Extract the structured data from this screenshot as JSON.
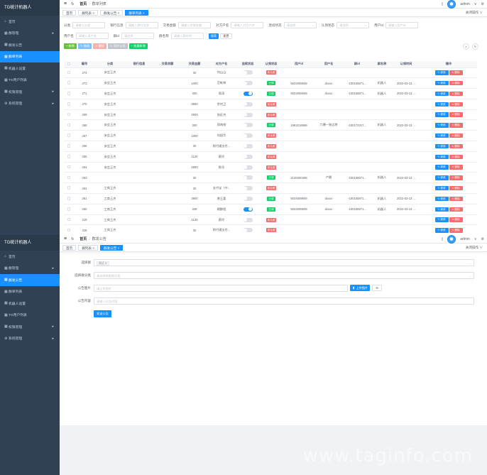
{
  "app_title": "TG统计机器人",
  "user": {
    "name": "admin",
    "caret": "∨"
  },
  "sidebar": {
    "items": [
      {
        "label": "首页",
        "icon": "home-icon",
        "glyph": "⌂",
        "arrow": ""
      },
      {
        "label": "群管理",
        "icon": "grid-icon",
        "glyph": "▦",
        "arrow": "▸"
      },
      {
        "label": "群发公告",
        "icon": "grid-icon",
        "glyph": "▦",
        "arrow": ""
      },
      {
        "label": "群单列表",
        "icon": "grid-icon",
        "glyph": "▦",
        "arrow": ""
      },
      {
        "label": "机器人设置",
        "icon": "grid-icon",
        "glyph": "▦",
        "arrow": ""
      },
      {
        "label": "TG用户列表",
        "icon": "grid-icon",
        "glyph": "▦",
        "arrow": ""
      },
      {
        "label": "权限管理",
        "icon": "grid-icon",
        "glyph": "▦",
        "arrow": "▸"
      },
      {
        "label": "系统管理",
        "icon": "gear-icon",
        "glyph": "⚙",
        "arrow": "▸"
      }
    ]
  },
  "p1": {
    "breadcrumb": {
      "home": "首页",
      "sep": "/",
      "current": "群单列表"
    },
    "tabs": [
      "首页",
      "群列表 ×",
      "群发公告 ×",
      "群单列表 ×"
    ],
    "tab_ops": "关闭操作 ∨",
    "filters": {
      "row1": [
        {
          "label": "分类",
          "placeholder": "请输入分类",
          "dropdown": false
        },
        {
          "label": "银行信息",
          "placeholder": "请输入银行信息",
          "dropdown": false
        },
        {
          "label": "交易金额",
          "placeholder": "请输入交易金额",
          "dropdown": false
        },
        {
          "label": "对方户名",
          "placeholder": "请输入对方户名",
          "dropdown": false
        },
        {
          "label": "连续状态",
          "placeholder": "请选择",
          "dropdown": true
        },
        {
          "label": "认领状态",
          "placeholder": "请选择",
          "dropdown": true
        },
        {
          "label": "用户id",
          "placeholder": "请输入用户id",
          "dropdown": false
        }
      ],
      "row2": [
        {
          "label": "用户名",
          "placeholder": "请输入用户名",
          "dropdown": false
        },
        {
          "label": "群id",
          "placeholder": "请选择",
          "dropdown": true
        },
        {
          "label": "群名称",
          "placeholder": "请输入群名称",
          "dropdown": false
        }
      ],
      "search": "搜索",
      "reset": "重置"
    },
    "toolbar": {
      "add": "+ 新增",
      "edit": "✎ 修改",
      "delete": "✕ 删除",
      "sync": "↻ 同步认领",
      "batch": "+ 批量新增",
      "search_toggle": "⌕",
      "refresh": "↻"
    },
    "table": {
      "headers": [
        "",
        "编号",
        "分类",
        "银行信息",
        "交易余额",
        "交易金额",
        "对方户名",
        "连续状态",
        "认领状态",
        "用户id",
        "用户名",
        "群id",
        "群名称",
        "认领时间",
        "操作"
      ],
      "edit_label": "✎ 修改",
      "delete_label": "✕ 删除",
      "tag_ok": "已领",
      "tag_no": "未认领",
      "rows": [
        {
          "id": "273",
          "cat": "安会王杰",
          "bank": "",
          "bal": "",
          "amt": "30",
          "payer": "何山山",
          "sw": false,
          "claimed": false,
          "uid": "",
          "uname": "",
          "gid": "",
          "gname": "",
          "time": ""
        },
        {
          "id": "272",
          "cat": "安会王杰",
          "bank": "",
          "bal": "",
          "amt": "1000",
          "payer": "范乾坤",
          "sw": false,
          "claimed": true,
          "uid": "5024008949",
          "uname": "dxxxx",
          "gid": "-100155971...",
          "gname": "机器人",
          "time": "2022-03-13 ..."
        },
        {
          "id": "271",
          "cat": "安会王杰",
          "bank": "",
          "bal": "",
          "amt": "300",
          "payer": "周涛",
          "sw": true,
          "claimed": true,
          "uid": "5024008949",
          "uname": "dxxxx",
          "gid": "-100155971...",
          "gname": "机器人",
          "time": "2022-03-13 ..."
        },
        {
          "id": "270",
          "cat": "安会王杰",
          "bank": "",
          "bal": "",
          "amt": "3560",
          "payer": "余何卫",
          "sw": false,
          "claimed": false,
          "uid": "",
          "uname": "",
          "gid": "",
          "gname": "",
          "time": ""
        },
        {
          "id": "269",
          "cat": "安会王杰",
          "bank": "",
          "bal": "",
          "amt": "2800",
          "payer": "张征杰",
          "sw": false,
          "claimed": false,
          "uid": "",
          "uname": "",
          "gid": "",
          "gname": "",
          "time": ""
        },
        {
          "id": "268",
          "cat": "安会王杰",
          "bank": "",
          "bal": "",
          "amt": "300",
          "payer": "郭南南",
          "sw": false,
          "claimed": true,
          "uid": "1963216599",
          "uname": "六爆—致远将",
          "gid": "-100172317...",
          "gname": "机器人",
          "time": "2022-03-13 ..."
        },
        {
          "id": "267",
          "cat": "安会王杰",
          "bank": "",
          "bal": "",
          "amt": "1000",
          "payer": "何园华",
          "sw": false,
          "claimed": false,
          "uid": "",
          "uname": "",
          "gid": "",
          "gname": "",
          "time": ""
        },
        {
          "id": "266",
          "cat": "安会王杰",
          "bank": "",
          "bal": "",
          "amt": "30",
          "payer": "财付通支付...",
          "sw": false,
          "claimed": false,
          "uid": "",
          "uname": "",
          "gid": "",
          "gname": "",
          "time": ""
        },
        {
          "id": "265",
          "cat": "安会王杰",
          "bank": "",
          "bal": "",
          "amt": "1120",
          "payer": "蔡玲",
          "sw": false,
          "claimed": false,
          "uid": "",
          "uname": "",
          "gid": "",
          "gname": "",
          "time": ""
        },
        {
          "id": "264",
          "cat": "安会王杰",
          "bank": "",
          "bal": "",
          "amt": "2800",
          "payer": "陈岳",
          "sw": false,
          "claimed": false,
          "uid": "",
          "uname": "",
          "gid": "",
          "gname": "",
          "time": ""
        },
        {
          "id": "263",
          "cat": "",
          "bank": "",
          "bal": "",
          "amt": "30",
          "payer": "",
          "sw": false,
          "claimed": true,
          "uid": "2125300408",
          "uname": "卢晨",
          "gid": "-100155971...",
          "gname": "机器人",
          "time": "2022-03-13 ..."
        },
        {
          "id": "262",
          "cat": "工商王杰",
          "bank": "",
          "bal": "",
          "amt": "30",
          "payer": "支付宝（中...",
          "sw": false,
          "claimed": false,
          "uid": "",
          "uname": "",
          "gid": "",
          "gname": "",
          "time": ""
        },
        {
          "id": "261",
          "cat": "工商王杰",
          "bank": "",
          "bal": "",
          "amt": "3900",
          "payer": "曾玉喜",
          "sw": false,
          "claimed": true,
          "uid": "5024008949",
          "uname": "dxxxx",
          "gid": "-100155971...",
          "gname": "机器人",
          "time": "2022-03-13 ..."
        },
        {
          "id": "260",
          "cat": "工商王杰",
          "bank": "",
          "bal": "",
          "amt": "328",
          "payer": "赖鹏程",
          "sw": true,
          "claimed": true,
          "uid": "5024008949",
          "uname": "dxxxx",
          "gid": "-100155971...",
          "gname": "机器人",
          "time": "2022-03-13 ..."
        },
        {
          "id": "219",
          "cat": "工商王杰",
          "bank": "",
          "bal": "",
          "amt": "1120",
          "payer": "蔡玲",
          "sw": false,
          "claimed": false,
          "uid": "",
          "uname": "",
          "gid": "",
          "gname": "",
          "time": ""
        },
        {
          "id": "318",
          "cat": "工商王杰",
          "bank": "",
          "bal": "",
          "amt": "30",
          "payer": "财付通支付...",
          "sw": false,
          "claimed": false,
          "uid": "",
          "uname": "",
          "gid": "",
          "gname": "",
          "time": ""
        }
      ]
    }
  },
  "p2": {
    "breadcrumb": {
      "home": "首页",
      "sep": "/",
      "current": "群发公告"
    },
    "tabs": [
      "首页",
      "群列表 ×",
      "群发公告 ×"
    ],
    "tab_ops": "关闭操作 ∨",
    "form": {
      "group_label": "选择群",
      "group_chip": "测试 ✕",
      "category_label": "选择群分类",
      "category_placeholder": "请选择按照群分类",
      "image_label": "公告图片",
      "image_placeholder": "请上传图片",
      "upload_label": "⬆ 上传图片",
      "small_btn": "⊞",
      "content_label": "公告内容",
      "content_placeholder": "请输入公告内容",
      "submit": "发送公告"
    },
    "watermark": "www.taginfo.com"
  }
}
